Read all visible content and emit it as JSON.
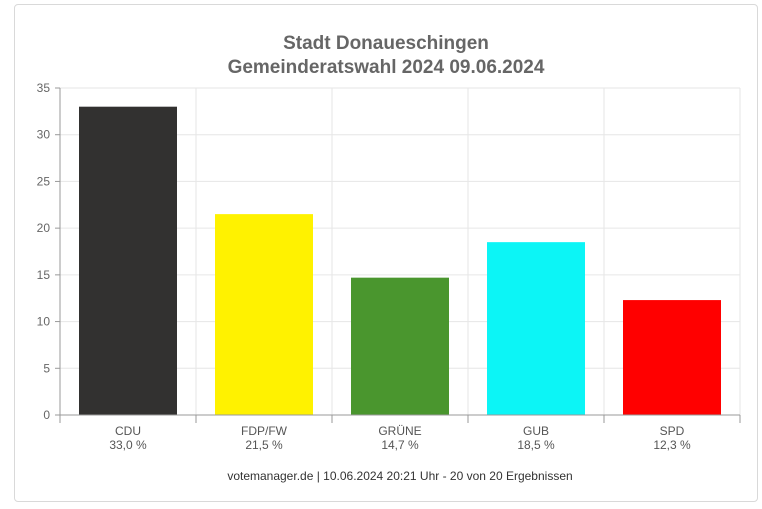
{
  "chart_data": {
    "type": "bar",
    "title": "Stadt Donaueschingen",
    "subtitle": "Gemeinderatswahl 2024 09.06.2024",
    "categories": [
      "CDU",
      "FDP/FW",
      "GRÜNE",
      "GUB",
      "SPD"
    ],
    "values": [
      33.0,
      21.5,
      14.7,
      18.5,
      12.3
    ],
    "data_labels": [
      "33,0 %",
      "21,5 %",
      "14,7 %",
      "18,5 %",
      "12,3 %"
    ],
    "colors": [
      "#323130",
      "#fff200",
      "#4a962e",
      "#0cf5f6",
      "#ff0000"
    ],
    "ylim": [
      0,
      35
    ],
    "yticks": [
      0,
      5,
      10,
      15,
      20,
      25,
      30,
      35
    ],
    "grid": true,
    "footer": "votemanager.de | 10.06.2024 20:21 Uhr - 20 von 20 Ergebnissen"
  }
}
